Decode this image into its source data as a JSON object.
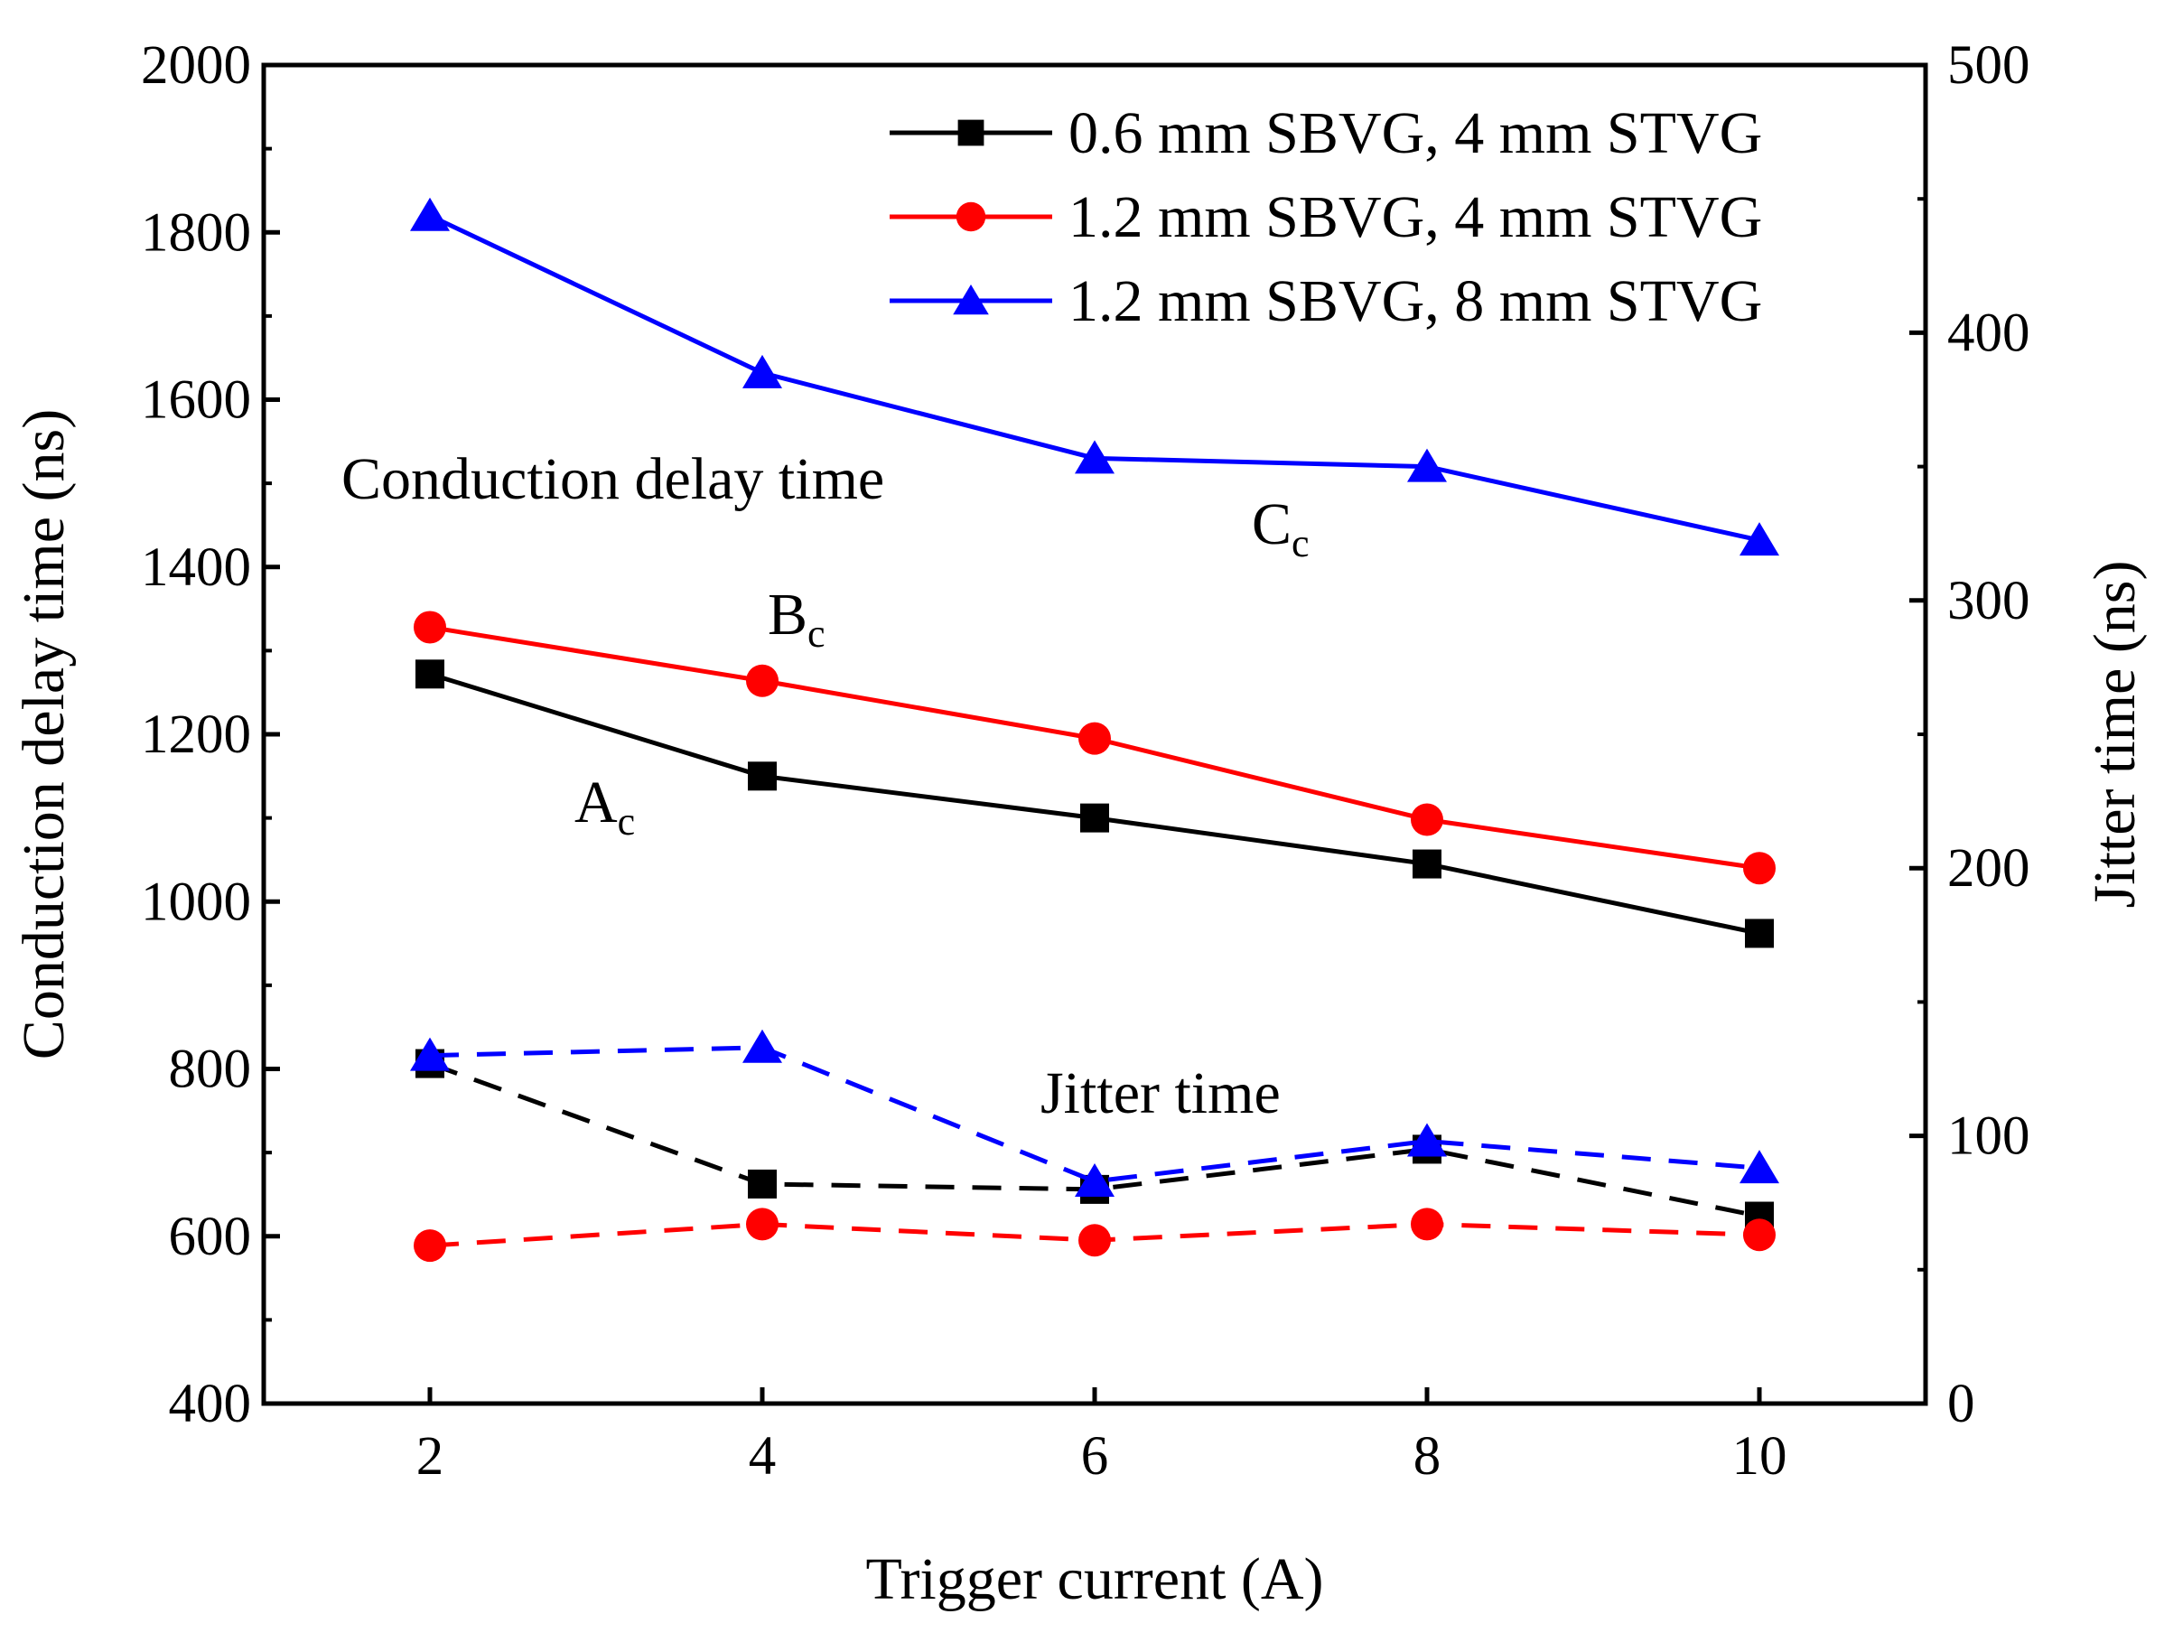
{
  "chart_data": {
    "type": "line",
    "xlabel": "Trigger current (A)",
    "ylabel_left": "Conduction delay time (ns)",
    "ylabel_right": "Jitter time (ns)",
    "x": [
      2,
      4,
      6,
      8,
      10
    ],
    "xlim": [
      1,
      11
    ],
    "x_ticks": [
      2,
      4,
      6,
      8,
      10
    ],
    "ylim_left": [
      400,
      2000
    ],
    "y_ticks_left": [
      400,
      600,
      800,
      1000,
      1200,
      1400,
      1600,
      1800,
      2000
    ],
    "ylim_right": [
      0,
      500
    ],
    "y_ticks_right": [
      0,
      100,
      200,
      300,
      400,
      500
    ],
    "series": [
      {
        "name": "0.6 mm SBVG, 4 mm STVG",
        "axis": "left",
        "metric": "conduction",
        "color": "#000000",
        "marker": "square",
        "line": "solid",
        "values": [
          1272,
          1150,
          1100,
          1045,
          962
        ]
      },
      {
        "name": "1.2 mm SBVG, 4 mm STVG",
        "axis": "left",
        "metric": "conduction",
        "color": "#ff0000",
        "marker": "circle",
        "line": "solid",
        "values": [
          1328,
          1264,
          1195,
          1098,
          1040
        ]
      },
      {
        "name": "1.2 mm SBVG, 8 mm STVG",
        "axis": "left",
        "metric": "conduction",
        "color": "#0000ff",
        "marker": "triangle",
        "line": "solid",
        "values": [
          1820,
          1632,
          1530,
          1520,
          1432
        ]
      },
      {
        "name": "0.6 mm SBVG, 4 mm STVG",
        "axis": "right",
        "metric": "jitter",
        "color": "#000000",
        "marker": "square",
        "line": "dashed",
        "values": [
          127,
          82,
          80,
          95,
          70
        ]
      },
      {
        "name": "1.2 mm SBVG, 4 mm STVG",
        "axis": "right",
        "metric": "jitter",
        "color": "#ff0000",
        "marker": "circle",
        "line": "dashed",
        "values": [
          59,
          67,
          61,
          67,
          63
        ]
      },
      {
        "name": "1.2 mm SBVG, 8 mm STVG",
        "axis": "right",
        "metric": "jitter",
        "color": "#0000ff",
        "marker": "triangle",
        "line": "dashed",
        "values": [
          130,
          133,
          83,
          98,
          88
        ]
      }
    ],
    "legend": {
      "placement": "top-right",
      "entries": [
        "0.6 mm SBVG, 4 mm STVG",
        "1.2 mm SBVG, 4 mm STVG",
        "1.2 mm SBVG, 8 mm STVG"
      ]
    },
    "annotations": {
      "conduction_label": "Conduction delay time",
      "jitter_label": "Jitter time",
      "curve_a": "A",
      "curve_b": "B",
      "curve_c": "C",
      "subscript": "c"
    }
  }
}
